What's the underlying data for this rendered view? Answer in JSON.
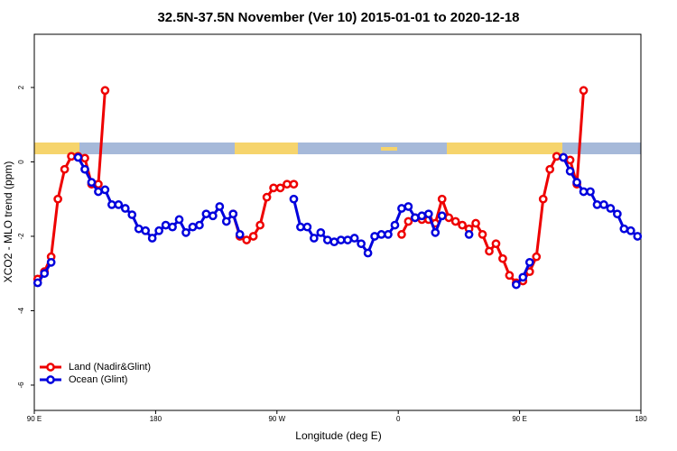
{
  "chart_data": {
    "type": "line",
    "title": "32.5N-37.5N November (Ver 10)   2015-01-01 to 2020-12-18",
    "x_label": "Longitude (deg E)",
    "y_label": "XCO2 - MLO trend (ppm)",
    "xlim": [
      90,
      540
    ],
    "ylim": [
      -6.68,
      3.43
    ],
    "xticks": [
      {
        "value": 90,
        "label": "90 E"
      },
      180,
      {
        "value": 270,
        "label": "90 W"
      },
      {
        "value": 360,
        "label": "0"
      },
      {
        "value": 450,
        "label": "90 E"
      },
      {
        "value": 540,
        "label": "180"
      }
    ],
    "yticks": [
      -6,
      -4,
      -2,
      0,
      2
    ],
    "legend": "bottom-left",
    "x": [
      92.5,
      97.5,
      102.5,
      107.5,
      112.5,
      117.5,
      122.5,
      127.5,
      132.5,
      137.5,
      142.5,
      147.5,
      152.5,
      157.5,
      162.5,
      167.5,
      172.5,
      177.5,
      182.5,
      187.5,
      192.5,
      197.5,
      202.5,
      207.5,
      212.5,
      217.5,
      222.5,
      227.5,
      232.5,
      237.5,
      242.5,
      247.5,
      252.5,
      257.5,
      262.5,
      267.5,
      272.5,
      277.5,
      282.5,
      287.5,
      292.5,
      297.5,
      302.5,
      307.5,
      312.5,
      317.5,
      322.5,
      327.5,
      332.5,
      337.5,
      342.5,
      347.5,
      352.5,
      357.5,
      362.5,
      367.5,
      372.5,
      377.5,
      382.5,
      387.5,
      392.5,
      397.5,
      402.5,
      407.5,
      412.5,
      417.5,
      422.5,
      427.5,
      432.5,
      437.5,
      442.5,
      447.5,
      452.5,
      457.5,
      462.5,
      467.5,
      472.5,
      477.5,
      482.5,
      487.5,
      492.5,
      497.5,
      502.5,
      507.5,
      512.5,
      517.5,
      522.5,
      527.5,
      532.5,
      537.5
    ],
    "series": [
      {
        "name": "Land (Nadir&Glint)",
        "color": "#ee0000",
        "values": [
          -3.15,
          -2.95,
          -2.55,
          -1.0,
          -0.2,
          0.15,
          0.15,
          0.1,
          -0.6,
          -0.6,
          1.92,
          null,
          null,
          null,
          null,
          null,
          null,
          null,
          null,
          null,
          null,
          null,
          null,
          null,
          null,
          null,
          null,
          null,
          null,
          -1.4,
          -2.0,
          -2.1,
          -2.0,
          -1.7,
          -0.95,
          -0.7,
          -0.7,
          -0.6,
          -0.6,
          null,
          null,
          null,
          null,
          null,
          null,
          null,
          null,
          null,
          null,
          null,
          null,
          null,
          null,
          null,
          -1.95,
          -1.6,
          -1.5,
          -1.55,
          -1.55,
          -1.65,
          -1.0,
          -1.5,
          -1.6,
          -1.7,
          -1.8,
          -1.65,
          -1.95,
          -2.4,
          -2.2,
          -2.6,
          -3.05,
          -3.25,
          -3.2,
          -2.95,
          -2.55,
          -1.0,
          -0.2,
          0.15,
          0.12,
          0.05,
          -0.6,
          1.92,
          null,
          null,
          null,
          null,
          null,
          null,
          null,
          null
        ]
      },
      {
        "name": "Ocean (Glint)",
        "color": "#0000dd",
        "values": [
          -3.25,
          -3.0,
          -2.7,
          null,
          null,
          null,
          0.12,
          -0.2,
          -0.55,
          -0.8,
          -0.75,
          -1.15,
          -1.15,
          -1.25,
          -1.42,
          -1.8,
          -1.85,
          -2.05,
          -1.85,
          -1.7,
          -1.75,
          -1.55,
          -1.9,
          -1.75,
          -1.7,
          -1.4,
          -1.45,
          -1.2,
          -1.6,
          -1.4,
          -1.95,
          null,
          null,
          null,
          null,
          null,
          null,
          null,
          -1.0,
          -1.75,
          -1.75,
          -2.05,
          -1.9,
          -2.1,
          -2.15,
          -2.1,
          -2.1,
          -2.05,
          -2.2,
          -2.45,
          -2.0,
          -1.95,
          -1.95,
          -1.7,
          -1.25,
          -1.2,
          -1.5,
          -1.45,
          -1.4,
          -1.9,
          -1.45,
          null,
          null,
          null,
          -1.95,
          null,
          null,
          null,
          null,
          null,
          null,
          -3.3,
          -3.1,
          -2.7,
          null,
          null,
          null,
          null,
          0.12,
          -0.25,
          -0.55,
          -0.8,
          -0.8,
          -1.15,
          -1.15,
          -1.25,
          -1.4,
          -1.8,
          -1.85,
          -2.0
        ]
      }
    ]
  }
}
